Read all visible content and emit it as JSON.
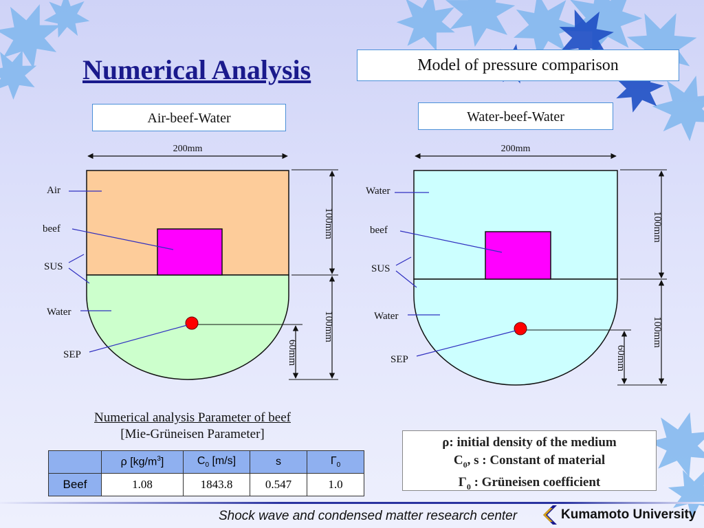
{
  "title": "Numerical Analysis",
  "model_box": "Model of pressure comparison",
  "left": {
    "label": "Air-beef-Water",
    "width_dim": "200mm",
    "upper_dim": "100mm",
    "lower_dim": "100mm",
    "sep_dim": "60mm",
    "parts": {
      "top": "Air",
      "beef": "beef",
      "sus": "SUS",
      "bottom": "Water",
      "sep": "SEP"
    },
    "colors": {
      "top": "#fdcc9a",
      "bottom": "#ccffcc",
      "beef": "#ff00ff",
      "sep": "#ff0000"
    }
  },
  "right": {
    "label": "Water-beef-Water",
    "width_dim": "200mm",
    "upper_dim": "100mm",
    "lower_dim": "100mm",
    "sep_dim": "60mm",
    "parts": {
      "top": "Water",
      "beef": "beef",
      "sus": "SUS",
      "bottom": "Water",
      "sep": "SEP"
    },
    "colors": {
      "top": "#ccffff",
      "bottom": "#ccffff",
      "beef": "#ff00ff",
      "sep": "#ff0000"
    }
  },
  "params": {
    "title_line1": "Numerical analysis Parameter of beef",
    "title_line2": "[Mie-Grüneisen  Parameter]",
    "headers": {
      "rho": "ρ",
      "rho_unit": "[kg/m",
      "rho_exp": "3",
      "c": "C",
      "c_sub": "0",
      "c_unit": "[m/s]",
      "s": "s",
      "gamma": "Γ",
      "gamma_sub": "0"
    },
    "row_label": "Beef",
    "values": {
      "rho": "1.08",
      "c": "1843.8",
      "s": "0.547",
      "gamma": "1.0"
    }
  },
  "legend": {
    "line1": "ρ: initial density of the medium",
    "line2_a": "C",
    "line2_sub": "0",
    "line2_b": ", s : Constant of material",
    "line3_a": "Γ",
    "line3_sub": "0",
    "line3_b": " : Grüneisen coefficient"
  },
  "footer": {
    "text": "Shock wave and condensed matter research center",
    "logo_text": "Kumamoto University"
  }
}
